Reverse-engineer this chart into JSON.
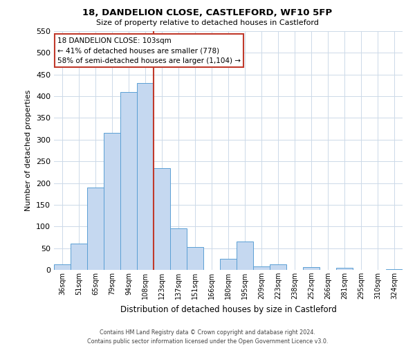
{
  "title": "18, DANDELION CLOSE, CASTLEFORD, WF10 5FP",
  "subtitle": "Size of property relative to detached houses in Castleford",
  "xlabel": "Distribution of detached houses by size in Castleford",
  "ylabel": "Number of detached properties",
  "bar_color": "#c5d8f0",
  "bar_edge_color": "#5a9fd4",
  "categories": [
    "36sqm",
    "51sqm",
    "65sqm",
    "79sqm",
    "94sqm",
    "108sqm",
    "123sqm",
    "137sqm",
    "151sqm",
    "166sqm",
    "180sqm",
    "195sqm",
    "209sqm",
    "223sqm",
    "238sqm",
    "252sqm",
    "266sqm",
    "281sqm",
    "295sqm",
    "310sqm",
    "324sqm"
  ],
  "values": [
    12,
    60,
    190,
    315,
    410,
    430,
    235,
    95,
    52,
    0,
    25,
    65,
    8,
    12,
    0,
    6,
    0,
    4,
    0,
    0,
    2
  ],
  "ylim": [
    0,
    550
  ],
  "yticks": [
    0,
    50,
    100,
    150,
    200,
    250,
    300,
    350,
    400,
    450,
    500,
    550
  ],
  "vline_x_index": 5.5,
  "vline_color": "#c0392b",
  "annotation_line1": "18 DANDELION CLOSE: 103sqm",
  "annotation_line2": "← 41% of detached houses are smaller (778)",
  "annotation_line3": "58% of semi-detached houses are larger (1,104) →",
  "annotation_box_color": "#ffffff",
  "annotation_box_edge_color": "#c0392b",
  "footer_line1": "Contains HM Land Registry data © Crown copyright and database right 2024.",
  "footer_line2": "Contains public sector information licensed under the Open Government Licence v3.0.",
  "background_color": "#ffffff",
  "grid_color": "#ccd9e8"
}
